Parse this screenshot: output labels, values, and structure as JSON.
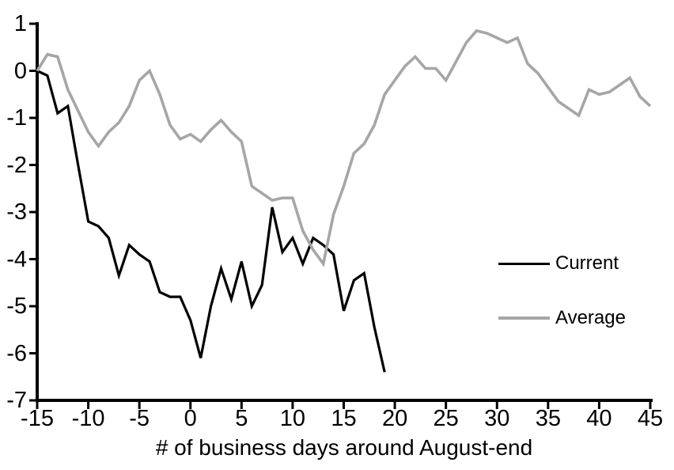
{
  "chart_data": {
    "type": "line",
    "title": "",
    "xlabel": "# of business days around August-end",
    "ylabel": "",
    "xlim": [
      -15,
      45
    ],
    "ylim": [
      -7,
      1
    ],
    "x_ticks": [
      -15,
      -10,
      -5,
      0,
      5,
      10,
      15,
      20,
      25,
      30,
      35,
      40,
      45
    ],
    "y_ticks": [
      1,
      0,
      -1,
      -2,
      -3,
      -4,
      -5,
      -6,
      -7
    ],
    "grid": false,
    "legend_position": "middle-right",
    "background_color": "#ffffff",
    "axis_color": "#000000",
    "series": [
      {
        "name": "Current",
        "color": "#000000",
        "line_width": 3.2,
        "x_start": -15,
        "x_step": 1,
        "values": [
          0,
          -0.1,
          -0.9,
          -0.75,
          -2.0,
          -3.2,
          -3.3,
          -3.55,
          -4.35,
          -3.7,
          -3.9,
          -4.05,
          -4.7,
          -4.8,
          -4.8,
          -5.3,
          -6.1,
          -5.0,
          -4.2,
          -4.85,
          -4.05,
          -5.0,
          -4.55,
          -2.9,
          -3.85,
          -3.55,
          -4.1,
          -3.55,
          -3.7,
          -3.9,
          -5.1,
          -4.45,
          -4.3,
          -5.45,
          -6.4
        ]
      },
      {
        "name": "Average",
        "color": "#a6a6a6",
        "line_width": 3.6,
        "x_start": -15,
        "x_step": 1,
        "values": [
          0,
          0.35,
          0.3,
          -0.4,
          -0.85,
          -1.3,
          -1.6,
          -1.3,
          -1.1,
          -0.75,
          -0.2,
          0.0,
          -0.5,
          -1.15,
          -1.45,
          -1.35,
          -1.5,
          -1.25,
          -1.05,
          -1.3,
          -1.5,
          -2.45,
          -2.6,
          -2.75,
          -2.7,
          -2.7,
          -3.4,
          -3.8,
          -4.1,
          -3.05,
          -2.45,
          -1.75,
          -1.55,
          -1.15,
          -0.5,
          -0.2,
          0.1,
          0.3,
          0.05,
          0.05,
          -0.2,
          0.2,
          0.6,
          0.85,
          0.8,
          0.7,
          0.6,
          0.7,
          0.15,
          -0.05,
          -0.35,
          -0.65,
          -0.8,
          -0.95,
          -0.4,
          -0.5,
          -0.45,
          -0.3,
          -0.15,
          -0.55,
          -0.75
        ]
      }
    ]
  }
}
